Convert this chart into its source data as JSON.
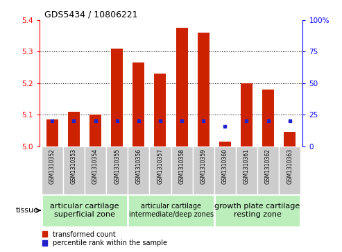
{
  "title": "GDS5434 / 10806221",
  "samples": [
    "GSM1310352",
    "GSM1310353",
    "GSM1310354",
    "GSM1310355",
    "GSM1310356",
    "GSM1310357",
    "GSM1310358",
    "GSM1310359",
    "GSM1310360",
    "GSM1310361",
    "GSM1310362",
    "GSM1310363"
  ],
  "red_values": [
    5.085,
    5.11,
    5.1,
    5.31,
    5.265,
    5.23,
    5.375,
    5.36,
    5.015,
    5.2,
    5.18,
    5.045
  ],
  "blue_percentile": [
    20,
    20,
    20,
    20,
    20,
    20,
    20,
    20,
    16,
    20,
    20,
    20
  ],
  "ylim": [
    5.0,
    5.4
  ],
  "y2lim": [
    0,
    100
  ],
  "y_ticks": [
    5.0,
    5.1,
    5.2,
    5.3,
    5.4
  ],
  "y2_ticks": [
    0,
    25,
    50,
    75,
    100
  ],
  "y2_tick_labels": [
    "0",
    "25",
    "50",
    "75",
    "100%"
  ],
  "group_defs": [
    [
      0,
      4,
      "articular cartilage\nsuperficial zone"
    ],
    [
      4,
      8,
      "articular cartilage\nintermediate/deep zones"
    ],
    [
      8,
      12,
      "growth plate cartilage\nresting zone"
    ]
  ],
  "group_font_sizes": [
    8,
    7,
    8
  ],
  "tissue_label": "tissue",
  "legend_red": "transformed count",
  "legend_blue": "percentile rank within the sample",
  "bar_color": "#cc2200",
  "blue_color": "#2222cc",
  "group_color": "#bbeebb",
  "gray_color": "#cccccc",
  "bar_width": 0.55,
  "base_value": 5.0,
  "group_borders": [
    4,
    8
  ],
  "dotted_lines": [
    5.1,
    5.2,
    5.3
  ]
}
